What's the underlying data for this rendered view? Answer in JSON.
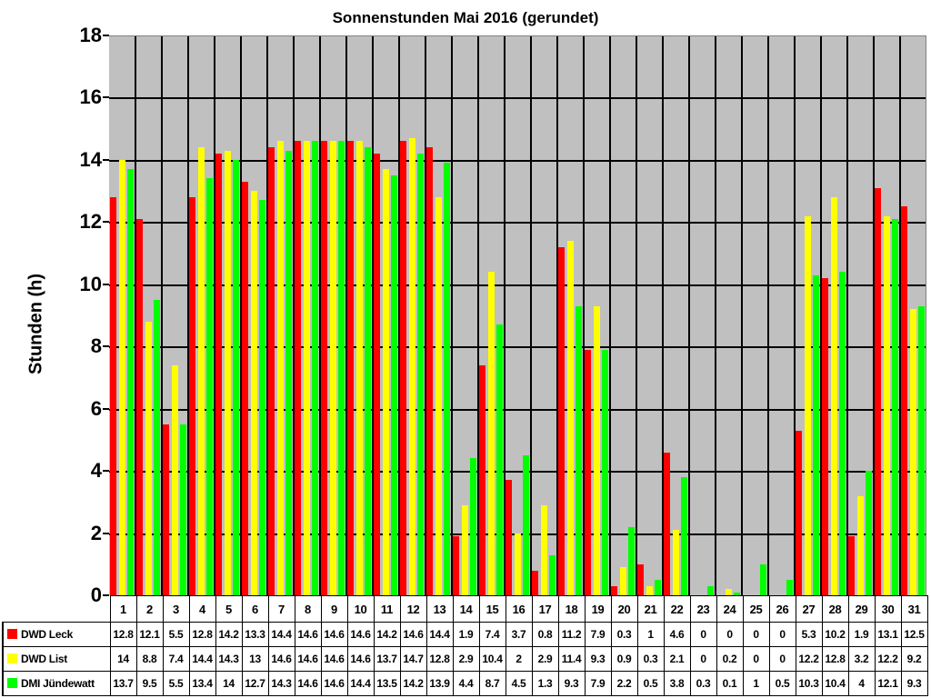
{
  "chart_data": {
    "type": "bar",
    "title": "Sonnenstunden Mai 2016 (gerundet)",
    "xlabel": "",
    "ylabel": "Stunden (h)",
    "ylim": [
      0,
      18
    ],
    "yticks": [
      0,
      2,
      4,
      6,
      8,
      10,
      12,
      14,
      16,
      18
    ],
    "grid": true,
    "legend_position": "data-table-below",
    "categories": [
      "1",
      "2",
      "3",
      "4",
      "5",
      "6",
      "7",
      "8",
      "9",
      "10",
      "11",
      "12",
      "13",
      "14",
      "15",
      "16",
      "17",
      "18",
      "19",
      "20",
      "21",
      "22",
      "23",
      "24",
      "25",
      "26",
      "27",
      "28",
      "29",
      "30",
      "31"
    ],
    "series": [
      {
        "name": "DWD Leck",
        "color": "#ff0000",
        "values": [
          12.8,
          12.1,
          5.5,
          12.8,
          14.2,
          13.3,
          14.4,
          14.6,
          14.6,
          14.6,
          14.2,
          14.6,
          14.4,
          1.9,
          7.4,
          3.7,
          0.8,
          11.2,
          7.9,
          0.3,
          1,
          4.6,
          0,
          0,
          0,
          0,
          5.3,
          10.2,
          1.9,
          13.1,
          12.5
        ]
      },
      {
        "name": "DWD List",
        "color": "#ffff00",
        "values": [
          14,
          8.8,
          7.4,
          14.4,
          14.3,
          13,
          14.6,
          14.6,
          14.6,
          14.6,
          13.7,
          14.7,
          12.8,
          2.9,
          10.4,
          2,
          2.9,
          11.4,
          9.3,
          0.9,
          0.3,
          2.1,
          0,
          0.2,
          0,
          0,
          12.2,
          12.8,
          3.2,
          12.2,
          9.2
        ]
      },
      {
        "name": "DMI Jündewatt",
        "color": "#00ff00",
        "values": [
          13.7,
          9.5,
          5.5,
          13.4,
          14,
          12.7,
          14.3,
          14.6,
          14.6,
          14.4,
          13.5,
          14.2,
          13.9,
          4.4,
          8.7,
          4.5,
          1.3,
          9.3,
          7.9,
          2.2,
          0.5,
          3.8,
          0.3,
          0.1,
          1,
          0.5,
          10.3,
          10.4,
          4,
          12.1,
          9.3
        ]
      }
    ]
  },
  "colors": {
    "plot_background": "#c0c0c0",
    "grid": "#000000"
  }
}
